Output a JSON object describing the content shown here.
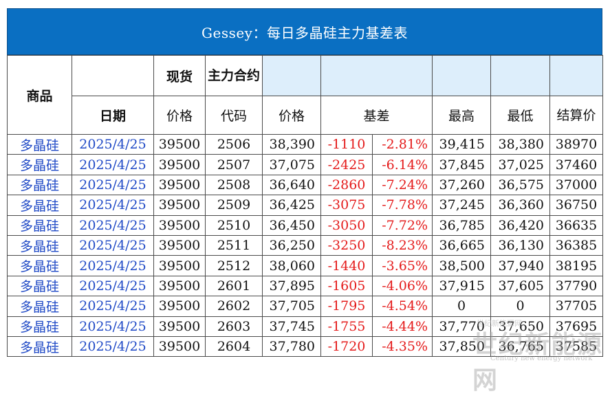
{
  "title": "Gessey：每日多晶硅主力基差表",
  "headers": {
    "product": "商品",
    "spot": "现货",
    "main_contract": "主力合约",
    "date": "日期",
    "spot_price": "价格",
    "code": "代码",
    "price": "价格",
    "basis": "基差",
    "high": "最高",
    "low": "最低",
    "settle": "结算价"
  },
  "rows": [
    {
      "product": "多晶硅",
      "date": "2025/4/25",
      "spot": "39500",
      "code": "2506",
      "price": "38,390",
      "basis": "-1110",
      "basis_pct": "-2.81%",
      "high": "39,415",
      "low": "38,380",
      "settle": "38970"
    },
    {
      "product": "多晶硅",
      "date": "2025/4/25",
      "spot": "39500",
      "code": "2507",
      "price": "37,075",
      "basis": "-2425",
      "basis_pct": "-6.14%",
      "high": "37,845",
      "low": "37,025",
      "settle": "37460"
    },
    {
      "product": "多晶硅",
      "date": "2025/4/25",
      "spot": "39500",
      "code": "2508",
      "price": "36,640",
      "basis": "-2860",
      "basis_pct": "-7.24%",
      "high": "37,260",
      "low": "36,575",
      "settle": "37000"
    },
    {
      "product": "多晶硅",
      "date": "2025/4/25",
      "spot": "39500",
      "code": "2509",
      "price": "36,425",
      "basis": "-3075",
      "basis_pct": "-7.78%",
      "high": "37,245",
      "low": "36,360",
      "settle": "36750"
    },
    {
      "product": "多晶硅",
      "date": "2025/4/25",
      "spot": "39500",
      "code": "2510",
      "price": "36,450",
      "basis": "-3050",
      "basis_pct": "-7.72%",
      "high": "36,785",
      "low": "36,420",
      "settle": "36635"
    },
    {
      "product": "多晶硅",
      "date": "2025/4/25",
      "spot": "39500",
      "code": "2511",
      "price": "36,250",
      "basis": "-3250",
      "basis_pct": "-8.23%",
      "high": "36,665",
      "low": "36,130",
      "settle": "36385"
    },
    {
      "product": "多晶硅",
      "date": "2025/4/25",
      "spot": "39500",
      "code": "2512",
      "price": "38,060",
      "basis": "-1440",
      "basis_pct": "-3.65%",
      "high": "38,500",
      "low": "37,940",
      "settle": "38195"
    },
    {
      "product": "多晶硅",
      "date": "2025/4/25",
      "spot": "39500",
      "code": "2601",
      "price": "37,895",
      "basis": "-1605",
      "basis_pct": "-4.06%",
      "high": "37,915",
      "low": "37,605",
      "settle": "37790"
    },
    {
      "product": "多晶硅",
      "date": "2025/4/25",
      "spot": "39500",
      "code": "2602",
      "price": "37,705",
      "basis": "-1795",
      "basis_pct": "-4.54%",
      "high": "0",
      "low": "0",
      "settle": "37705"
    },
    {
      "product": "多晶硅",
      "date": "2025/4/25",
      "spot": "39500",
      "code": "2603",
      "price": "37,745",
      "basis": "-1755",
      "basis_pct": "-4.44%",
      "high": "37,770",
      "low": "37,650",
      "settle": "37695"
    },
    {
      "product": "多晶硅",
      "date": "2025/4/25",
      "spot": "39500",
      "code": "2604",
      "price": "37,780",
      "basis": "-1720",
      "basis_pct": "-4.35%",
      "high": "37,850",
      "low": "36,765",
      "settle": "37585"
    }
  ],
  "watermark": {
    "top": "世纪新能源网",
    "main": "世纪新能源网",
    "sub": "Century new energy network"
  }
}
